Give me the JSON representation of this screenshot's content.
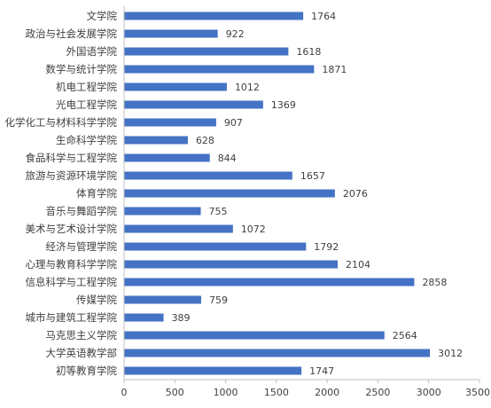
{
  "chart_data": {
    "type": "bar",
    "orientation": "horizontal",
    "title": "",
    "xlabel": "",
    "ylabel": "",
    "categories": [
      "文学院",
      "政治与社会发展学院",
      "外国语学院",
      "数学与统计学院",
      "机电工程学院",
      "光电工程学院",
      "化学化工与材料科学学院",
      "生命科学学院",
      "食品科学与工程学院",
      "旅游与资源环境学院",
      "体育学院",
      "音乐与舞蹈学院",
      "美术与艺术设计学院",
      "经济与管理学院",
      "心理与教育科学学院",
      "信息科学与工程学院",
      "传媒学院",
      "城市与建筑工程学院",
      "马克思主义学院",
      "大学英语教学部",
      "初等教育学院"
    ],
    "values": [
      1764,
      922,
      1618,
      1871,
      1012,
      1369,
      907,
      628,
      844,
      1657,
      2076,
      755,
      1072,
      1792,
      2104,
      2858,
      759,
      389,
      2564,
      3012,
      1747
    ],
    "xlim": [
      0,
      3500
    ],
    "xticks": [
      0,
      500,
      1000,
      1500,
      2000,
      2500,
      3000,
      3500
    ],
    "bar_color": "#4472C4",
    "grid": false,
    "legend": "none"
  }
}
